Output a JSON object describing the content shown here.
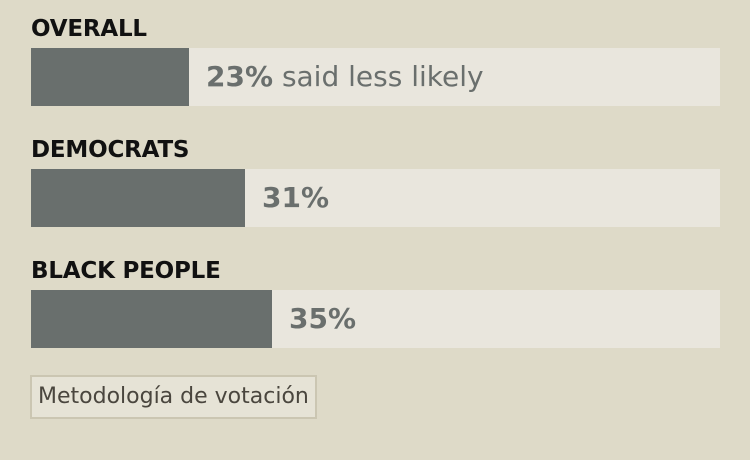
{
  "chart_data": {
    "type": "bar",
    "orientation": "horizontal",
    "categories": [
      "OVERALL",
      "DEMOCRATS",
      "BLACK PEOPLE"
    ],
    "values": [
      23,
      31,
      35
    ],
    "value_labels": [
      "23%",
      "31%",
      "35%"
    ],
    "first_label_suffix": "said less likely",
    "xlim": [
      0,
      100
    ],
    "unit": "%",
    "colors": {
      "fill": "#696f6d",
      "track": "#e9e6dd",
      "background": "#dedac8"
    }
  },
  "footer": {
    "method_button_label": "Metodología de votación"
  }
}
